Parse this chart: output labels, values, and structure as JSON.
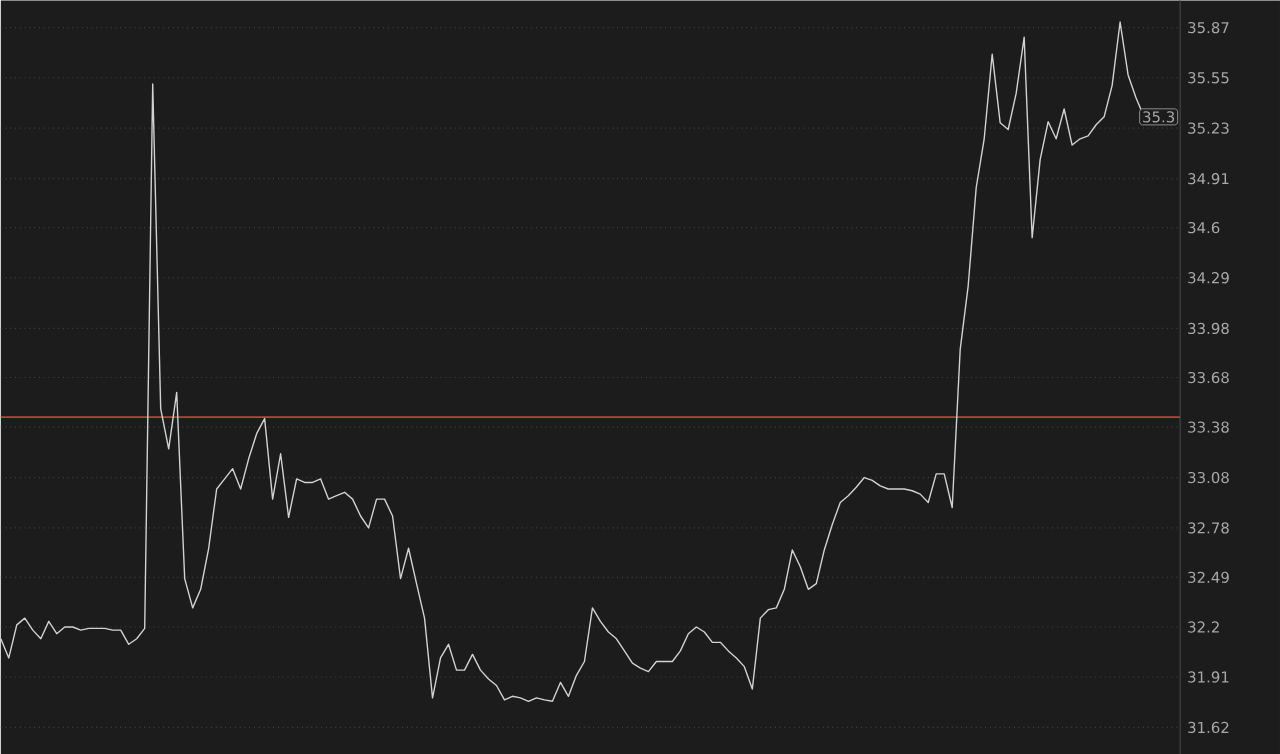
{
  "chart_data": {
    "type": "line",
    "log": true,
    "grid": "y",
    "tick_labels": "y",
    "marker": "none",
    "ylim": [
      31.47,
      36.05
    ],
    "yticks": [
      31.62,
      31.91,
      32.2,
      32.49,
      32.78,
      33.08,
      33.38,
      33.68,
      33.98,
      34.29,
      34.6,
      34.91,
      35.23,
      35.55,
      35.87
    ],
    "categories": [
      null,
      null,
      null,
      null,
      null,
      null,
      null,
      null,
      null,
      null,
      null,
      null,
      null,
      null,
      null,
      null,
      null,
      null,
      null,
      null,
      null,
      null,
      null,
      null,
      null,
      null,
      null,
      null,
      null,
      null,
      null,
      null,
      null,
      null,
      null,
      null,
      null,
      null,
      null,
      null,
      null,
      null,
      null,
      null,
      null,
      null,
      null,
      null,
      null,
      null,
      null,
      null,
      null,
      null,
      null,
      null,
      null,
      null,
      null,
      null,
      null,
      null,
      null,
      null,
      null,
      null,
      null,
      null,
      null,
      null,
      null,
      null,
      null,
      null,
      null,
      null,
      null,
      null,
      null,
      null,
      null,
      null,
      null,
      null,
      null,
      null,
      null,
      null,
      null,
      null,
      null,
      null,
      null,
      null,
      null,
      null,
      null,
      null,
      null,
      null,
      null,
      null,
      null,
      null,
      null,
      null,
      null,
      null,
      null,
      null,
      null,
      null,
      null,
      null,
      null,
      null,
      null,
      null,
      null,
      null,
      null,
      null,
      null,
      null,
      null,
      null,
      null,
      null,
      null,
      null,
      null,
      null,
      null,
      null,
      null,
      null,
      null,
      null,
      null,
      null,
      null,
      null,
      null,
      null
    ],
    "series": [
      {
        "color": "#d2d2d2",
        "values": [
          32.13,
          32.02,
          32.21,
          32.25,
          32.18,
          32.13,
          32.23,
          32.16,
          32.2,
          32.2,
          32.18,
          32.19,
          32.19,
          32.19,
          32.18,
          32.18,
          32.1,
          32.13,
          32.19,
          35.51,
          33.49,
          33.25,
          33.59,
          32.48,
          32.31,
          32.42,
          32.66,
          33.01,
          33.07,
          33.13,
          33.01,
          33.19,
          33.34,
          33.43,
          32.95,
          33.22,
          32.84,
          33.07,
          33.05,
          33.05,
          33.07,
          32.95,
          32.97,
          32.99,
          32.95,
          32.85,
          32.78,
          32.95,
          32.95,
          32.85,
          32.48,
          32.66,
          32.45,
          32.25,
          31.79,
          32.02,
          32.1,
          31.95,
          31.95,
          32.04,
          31.95,
          31.9,
          31.86,
          31.78,
          31.8,
          31.79,
          31.77,
          31.79,
          31.78,
          31.77,
          31.88,
          31.8,
          31.92,
          32.0,
          32.31,
          32.23,
          32.17,
          32.13,
          32.06,
          31.99,
          31.96,
          31.94,
          32.0,
          32.0,
          32.0,
          32.06,
          32.16,
          32.2,
          32.17,
          32.11,
          32.11,
          32.06,
          32.02,
          31.97,
          31.84,
          32.25,
          32.3,
          32.31,
          32.42,
          32.65,
          32.55,
          32.42,
          32.45,
          32.65,
          32.8,
          32.93,
          32.97,
          33.02,
          33.08,
          33.06,
          33.03,
          33.01,
          33.01,
          33.01,
          33.0,
          32.98,
          32.93,
          33.1,
          33.1,
          32.9,
          33.85,
          34.24,
          34.85,
          35.16,
          35.7,
          35.26,
          35.22,
          35.45,
          35.81,
          34.54,
          35.03,
          35.27,
          35.16,
          35.35,
          35.12,
          35.16,
          35.18,
          35.25,
          35.3,
          35.5,
          35.91,
          35.57,
          35.42,
          35.3
        ]
      }
    ],
    "ref_lines": [
      {
        "axis": "y",
        "value": 33.44,
        "color": "#b5463e"
      }
    ],
    "annotations": [
      {
        "text": "35.3",
        "y": 35.3
      }
    ]
  }
}
